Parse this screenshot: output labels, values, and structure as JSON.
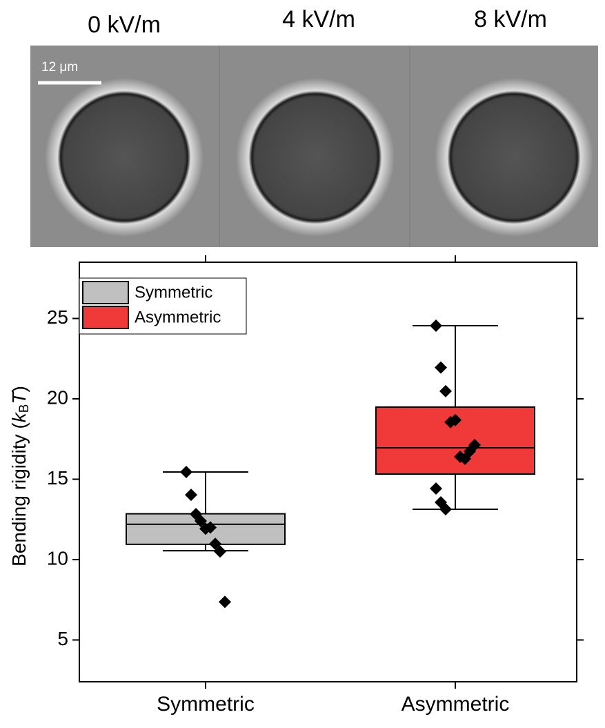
{
  "micrographs": {
    "panel_labels": [
      "0 kV/m",
      "4 kV/m",
      "8 kV/m"
    ],
    "scale_bar": "12 μm"
  },
  "chart_data": {
    "type": "box",
    "categories": [
      "Symmetric",
      "Asymmetric"
    ],
    "y_label": [
      "Bending rigidity (",
      "k",
      "B",
      "T",
      ")"
    ],
    "ylim": [
      2.4,
      28.5
    ],
    "yticks": [
      5,
      10,
      15,
      20,
      25
    ],
    "legend": "top-left",
    "series": [
      {
        "name": "Symmetric",
        "color": "#c0c0c0",
        "whisker_low": 10.55,
        "q1": 10.95,
        "median": 12.2,
        "q3": 12.85,
        "whisker_high": 15.45,
        "points": [
          15.45,
          14.03,
          12.83,
          12.4,
          11.92,
          12.0,
          10.98,
          10.5,
          7.37
        ]
      },
      {
        "name": "Asymmetric",
        "color": "#f03a3a",
        "whisker_low": 13.13,
        "q1": 15.32,
        "median": 16.95,
        "q3": 19.49,
        "whisker_high": 24.55,
        "points": [
          24.55,
          21.95,
          20.48,
          18.55,
          18.68,
          16.4,
          16.27,
          16.74,
          17.13,
          14.42,
          13.56,
          13.13
        ]
      }
    ]
  }
}
